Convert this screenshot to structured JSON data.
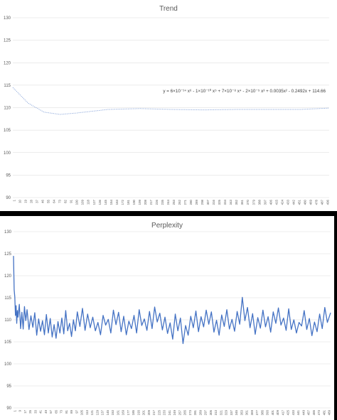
{
  "chart_data": [
    {
      "type": "line",
      "title": "Trend",
      "ylim": [
        90,
        130
      ],
      "yticks": [
        90,
        95,
        100,
        105,
        110,
        115,
        120,
        125,
        130
      ],
      "xlim": [
        1,
        496
      ],
      "grid": true,
      "legend": "none",
      "line_style": "dotted",
      "line_color": "#8ea9db",
      "equation": "y = 6×10⁻¹⁴ x⁶ - 1×10⁻¹⁰ x⁵ + 7×10⁻⁸ x⁴ - 2×10⁻⁵ x³ + 0.0035x² - 0.2492x + 114.66",
      "x_tick_labels": [
        "1",
        "10",
        "19",
        "28",
        "37",
        "46",
        "55",
        "64",
        "73",
        "82",
        "91",
        "100",
        "109",
        "118",
        "127",
        "136",
        "145",
        "154",
        "163",
        "172",
        "181",
        "190",
        "199",
        "208",
        "217",
        "226",
        "235",
        "244",
        "253",
        "262",
        "271",
        "280",
        "289",
        "298",
        "307",
        "316",
        "325",
        "334",
        "343",
        "352",
        "361",
        "370",
        "379",
        "388",
        "397",
        "406",
        "415",
        "424",
        "433",
        "442",
        "451",
        "460",
        "469",
        "478",
        "487",
        "496"
      ],
      "x": [
        1,
        25,
        50,
        75,
        100,
        150,
        200,
        250,
        300,
        350,
        400,
        450,
        496
      ],
      "values": [
        114.5,
        111.0,
        109.0,
        108.5,
        108.8,
        109.6,
        109.8,
        109.6,
        109.5,
        109.6,
        109.6,
        109.6,
        109.9
      ]
    },
    {
      "type": "line",
      "title": "Perplexity",
      "ylim": [
        90,
        130
      ],
      "yticks": [
        90,
        95,
        100,
        105,
        110,
        115,
        120,
        125,
        130
      ],
      "xlim": [
        1,
        493
      ],
      "grid": true,
      "legend": "none",
      "line_color": "#4472c4",
      "x_tick_labels": [
        "1",
        "9",
        "17",
        "25",
        "33",
        "41",
        "49",
        "57",
        "65",
        "73",
        "81",
        "89",
        "97",
        "105",
        "113",
        "121",
        "129",
        "137",
        "145",
        "153",
        "161",
        "169",
        "177",
        "185",
        "193",
        "201",
        "209",
        "217",
        "225",
        "233",
        "241",
        "249",
        "257",
        "265",
        "273",
        "281",
        "289",
        "297",
        "305",
        "313",
        "321",
        "329",
        "337",
        "345",
        "353",
        "361",
        "369",
        "377",
        "385",
        "393",
        "401",
        "409",
        "417",
        "425",
        "433",
        "441",
        "449",
        "457",
        "465",
        "473",
        "481",
        "489"
      ],
      "x": [
        1,
        2,
        3,
        4,
        5,
        6,
        7,
        8,
        10,
        12,
        14,
        16,
        18,
        20,
        22,
        25,
        28,
        31,
        34,
        37,
        40,
        43,
        46,
        49,
        52,
        55,
        58,
        61,
        64,
        67,
        70,
        73,
        76,
        79,
        82,
        85,
        88,
        91,
        94,
        97,
        100,
        104,
        108,
        112,
        116,
        120,
        124,
        128,
        132,
        136,
        140,
        144,
        148,
        152,
        156,
        160,
        164,
        168,
        172,
        176,
        180,
        184,
        188,
        192,
        196,
        200,
        204,
        208,
        212,
        216,
        220,
        224,
        228,
        232,
        236,
        240,
        244,
        248,
        252,
        256,
        260,
        264,
        268,
        272,
        276,
        280,
        284,
        288,
        292,
        296,
        300,
        304,
        308,
        312,
        316,
        320,
        324,
        328,
        332,
        336,
        340,
        344,
        348,
        352,
        356,
        360,
        364,
        368,
        372,
        376,
        380,
        384,
        388,
        392,
        396,
        400,
        404,
        408,
        412,
        416,
        420,
        424,
        428,
        432,
        436,
        440,
        444,
        448,
        452,
        456,
        460,
        464,
        468,
        472,
        476,
        480,
        484,
        488,
        493
      ],
      "values": [
        124.5,
        116.8,
        115.2,
        111.0,
        113.2,
        109.2,
        112.1,
        110.6,
        113.5,
        108.0,
        111.7,
        107.9,
        113.0,
        109.8,
        112.3,
        107.8,
        110.9,
        108.3,
        111.6,
        106.5,
        110.2,
        107.4,
        109.8,
        106.6,
        111.2,
        107.0,
        110.3,
        106.1,
        108.9,
        105.8,
        109.6,
        107.0,
        110.4,
        106.8,
        112.1,
        107.5,
        109.2,
        106.2,
        110.0,
        107.5,
        111.8,
        108.5,
        112.6,
        107.6,
        111.3,
        108.2,
        110.6,
        107.5,
        109.4,
        106.6,
        111.0,
        108.8,
        110.1,
        107.0,
        112.2,
        108.9,
        111.7,
        107.3,
        110.8,
        106.6,
        109.7,
        108.0,
        111.0,
        107.0,
        112.3,
        108.7,
        110.2,
        107.6,
        111.9,
        108.0,
        112.9,
        109.5,
        111.5,
        107.7,
        110.6,
        106.9,
        109.3,
        105.6,
        111.3,
        107.5,
        110.4,
        104.6,
        108.7,
        106.5,
        110.8,
        108.2,
        112.0,
        107.3,
        110.7,
        108.4,
        112.2,
        109.0,
        111.8,
        107.2,
        109.9,
        106.5,
        111.1,
        108.5,
        112.3,
        107.9,
        110.1,
        107.4,
        111.9,
        109.0,
        115.1,
        109.8,
        112.8,
        108.2,
        111.4,
        106.7,
        110.5,
        108.1,
        112.2,
        108.4,
        110.7,
        107.2,
        111.8,
        109.2,
        112.7,
        108.8,
        110.4,
        107.6,
        112.5,
        107.8,
        110.0,
        107.0,
        109.4,
        108.6,
        112.1,
        107.8,
        110.3,
        106.4,
        109.5,
        107.3,
        111.3,
        108.0,
        112.8,
        109.4,
        111.6
      ]
    }
  ]
}
